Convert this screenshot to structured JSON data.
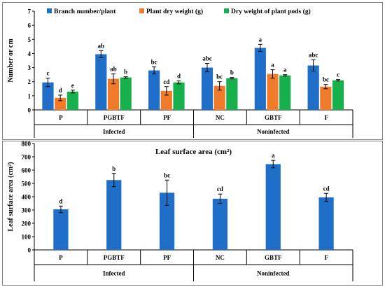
{
  "chart_data": [
    {
      "type": "bar",
      "title": "",
      "xlabel": "",
      "ylabel": "Number or cm",
      "ylim": [
        0,
        7
      ],
      "yticks": [
        0,
        1,
        2,
        3,
        4,
        5,
        6,
        7
      ],
      "grid": false,
      "legend_position": "top",
      "categories": [
        "P",
        "PGBTF",
        "PF",
        "NC",
        "GBTF",
        "F"
      ],
      "groups": [
        {
          "label": "Infected",
          "categories": [
            "P",
            "PGBTF",
            "PF"
          ]
        },
        {
          "label": "Noninfected",
          "categories": [
            "NC",
            "GBTF",
            "F"
          ]
        }
      ],
      "series": [
        {
          "name": "Branch number/plant",
          "color": "#1f6fc8",
          "values": [
            1.95,
            3.95,
            2.8,
            3.0,
            4.4,
            3.15
          ],
          "errors": [
            0.3,
            0.25,
            0.25,
            0.3,
            0.25,
            0.4
          ],
          "letters": [
            "c",
            "ab",
            "bc",
            "abc",
            "a",
            "abc"
          ]
        },
        {
          "name": "Plant dry weight (g)",
          "color": "#f07b2b",
          "values": [
            0.85,
            2.2,
            1.35,
            1.7,
            2.55,
            1.65
          ],
          "errors": [
            0.2,
            0.35,
            0.3,
            0.3,
            0.3,
            0.15
          ],
          "letters": [
            "d",
            "ab",
            "cd",
            "bc",
            "a",
            "bc"
          ]
        },
        {
          "name": "Dry weight  of plant pods (g)",
          "color": "#16b04c",
          "values": [
            1.3,
            2.3,
            1.95,
            2.25,
            2.45,
            2.1
          ],
          "errors": [
            0.1,
            0.05,
            0.1,
            0.05,
            0.05,
            0.05
          ],
          "letters": [
            "e",
            "b",
            "d",
            "b",
            "a",
            "c"
          ]
        }
      ]
    },
    {
      "type": "bar",
      "title": "Leaf surface area (cm²)",
      "xlabel": "",
      "ylabel": "Leaf surface area (cm²)",
      "ylim": [
        0,
        800
      ],
      "yticks": [
        0,
        100,
        200,
        300,
        400,
        500,
        600,
        700,
        800
      ],
      "grid": false,
      "categories": [
        "P",
        "PGBTF",
        "PF",
        "NC",
        "GBTF",
        "F"
      ],
      "groups": [
        {
          "label": "Infected",
          "categories": [
            "P",
            "PGBTF",
            "PF"
          ]
        },
        {
          "label": "Noninfected",
          "categories": [
            "NC",
            "GBTF",
            "F"
          ]
        }
      ],
      "series": [
        {
          "name": "",
          "color": "#1f6fc8",
          "values": [
            305,
            525,
            430,
            385,
            645,
            395
          ],
          "errors": [
            25,
            50,
            95,
            35,
            28,
            30
          ],
          "letters": [
            "d",
            "b",
            "bc",
            "cd",
            "a",
            "cd"
          ]
        }
      ]
    }
  ]
}
